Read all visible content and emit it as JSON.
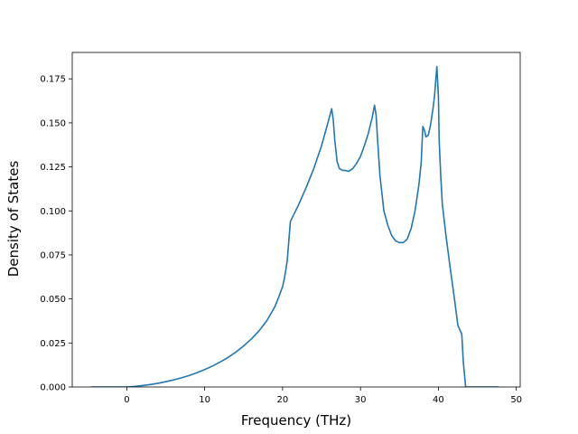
{
  "chart_data": {
    "type": "line",
    "title": "",
    "xlabel": "Frequency (THz)",
    "ylabel": "Density of States",
    "xlim": [
      -7,
      50.5
    ],
    "ylim": [
      0,
      0.19
    ],
    "x_ticks": [
      0,
      10,
      20,
      30,
      40,
      50
    ],
    "y_ticks": [
      0.0,
      0.025,
      0.05,
      0.075,
      0.1,
      0.125,
      0.15,
      0.175
    ],
    "x_tick_labels": [
      "0",
      "10",
      "20",
      "30",
      "40",
      "50"
    ],
    "y_tick_labels": [
      "0.000",
      "0.025",
      "0.050",
      "0.075",
      "0.100",
      "0.125",
      "0.150",
      "0.175"
    ],
    "grid": false,
    "legend": "none",
    "series": [
      {
        "color": "#1f77b4",
        "x": [
          -4.5,
          -2,
          0,
          1,
          2,
          3,
          4,
          5,
          6,
          7,
          8,
          9,
          10,
          11,
          12,
          13,
          14,
          15,
          16,
          17,
          18,
          19,
          19.5,
          20,
          20.2,
          20.4,
          20.6,
          21,
          22,
          23,
          24,
          25,
          25.5,
          26,
          26.3,
          26.5,
          26.7,
          27,
          27.3,
          27.7,
          28,
          28.5,
          29,
          29.5,
          30,
          30.5,
          31,
          31.5,
          31.8,
          32,
          32.2,
          32.5,
          32.8,
          33,
          33.5,
          34,
          34.5,
          35,
          35.5,
          36,
          36.5,
          37,
          37.5,
          37.8,
          38,
          38.2,
          38.4,
          38.7,
          39,
          39.3,
          39.5,
          39.8,
          40,
          40.1,
          40.3,
          40.5,
          41,
          41.5,
          42,
          42.5,
          43,
          43.2,
          43.5,
          45,
          47.7
        ],
        "y": [
          0.0,
          0.0,
          0.0,
          0.0003,
          0.0008,
          0.0014,
          0.0021,
          0.003,
          0.004,
          0.0052,
          0.0065,
          0.0081,
          0.0099,
          0.0119,
          0.0142,
          0.0168,
          0.0198,
          0.0233,
          0.0273,
          0.032,
          0.0378,
          0.0455,
          0.051,
          0.057,
          0.061,
          0.066,
          0.072,
          0.094,
          0.103,
          0.113,
          0.124,
          0.137,
          0.145,
          0.153,
          0.158,
          0.152,
          0.14,
          0.128,
          0.124,
          0.123,
          0.123,
          0.1225,
          0.124,
          0.127,
          0.131,
          0.137,
          0.144,
          0.153,
          0.16,
          0.1545,
          0.14,
          0.12,
          0.108,
          0.1,
          0.092,
          0.086,
          0.083,
          0.082,
          0.082,
          0.084,
          0.09,
          0.1,
          0.115,
          0.128,
          0.148,
          0.146,
          0.142,
          0.143,
          0.149,
          0.158,
          0.165,
          0.182,
          0.165,
          0.14,
          0.12,
          0.104,
          0.085,
          0.068,
          0.052,
          0.035,
          0.03,
          0.014,
          0.0,
          0.0,
          0.0
        ]
      }
    ]
  }
}
